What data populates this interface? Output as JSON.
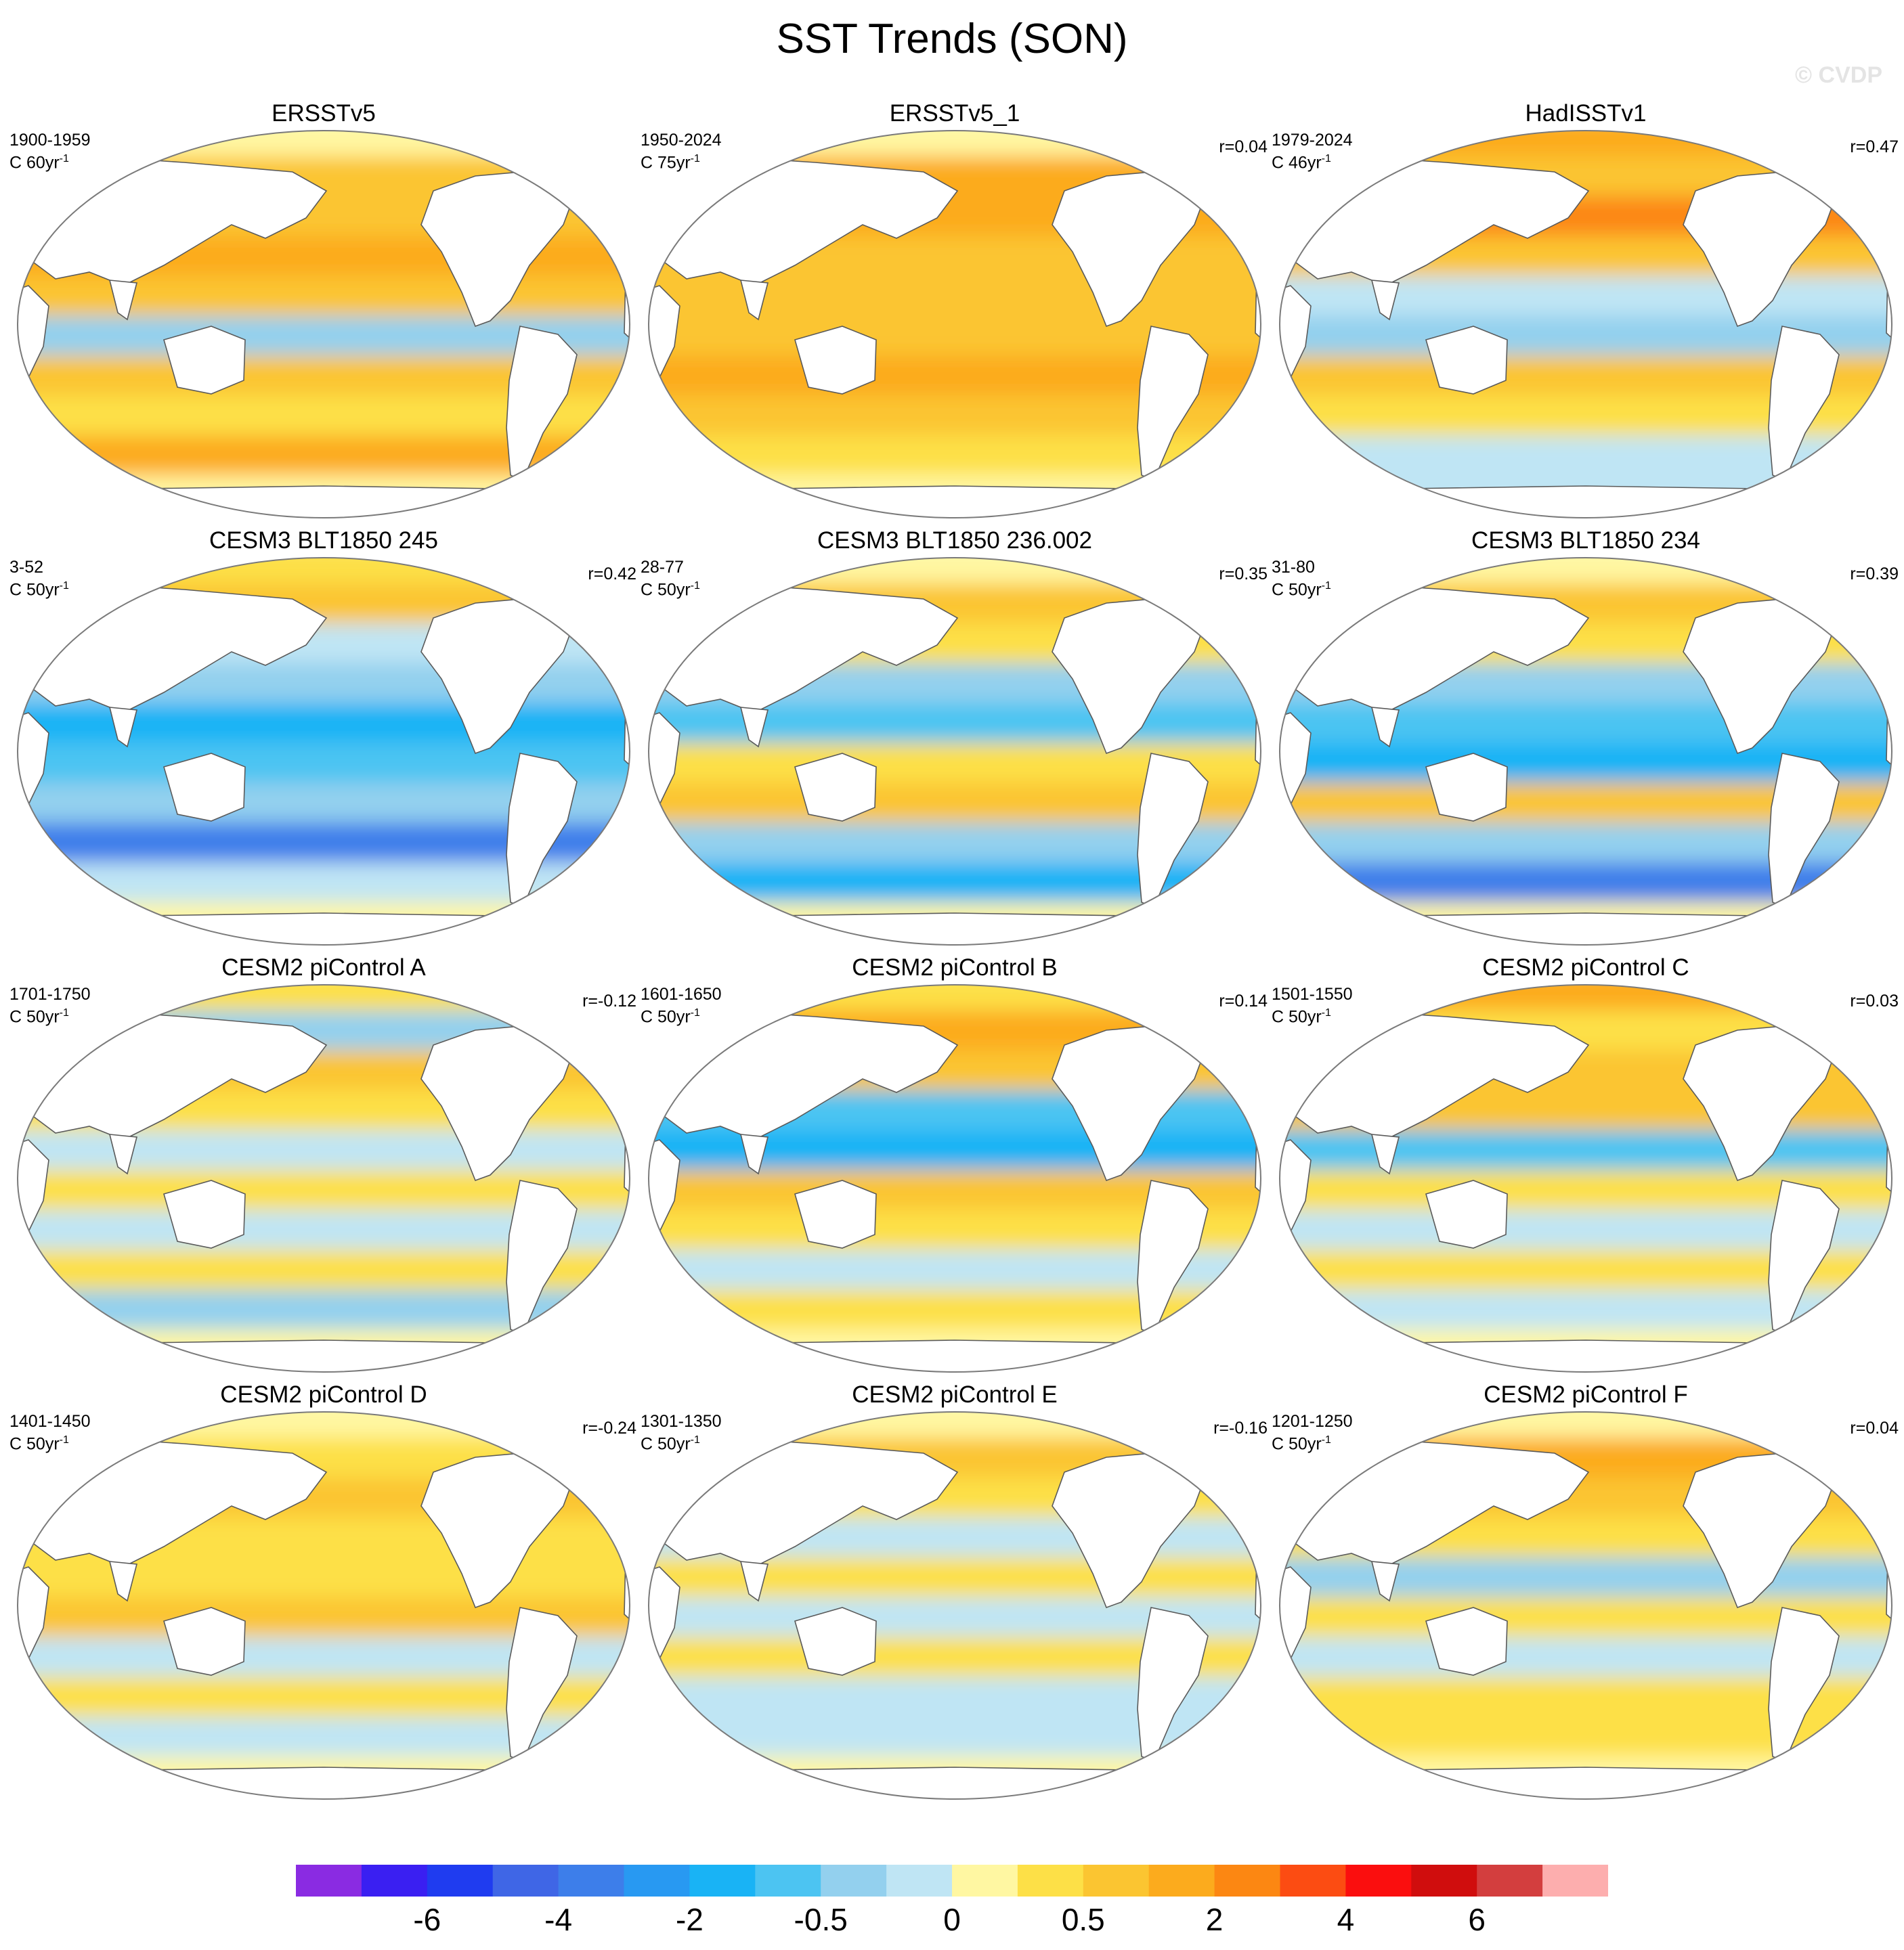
{
  "title": "SST Trends (SON)",
  "watermark": "© CVDP",
  "units": {
    "prefix": "C ",
    "suffix": "yr",
    "exponent": "-1"
  },
  "colors": {
    "land": "#ffffff",
    "coast": "#5a5a5a",
    "outline": "#7a7a7a"
  },
  "panels": [
    {
      "title": "ERSSTv5",
      "period": "1900-1959",
      "span": "60",
      "corr": "",
      "pattern": 0
    },
    {
      "title": "ERSSTv5_1",
      "period": "1950-2024",
      "span": "75",
      "corr": "r=0.04",
      "pattern": 1
    },
    {
      "title": "HadISSTv1",
      "period": "1979-2024",
      "span": "46",
      "corr": "r=0.47",
      "pattern": 2
    },
    {
      "title": "CESM3 BLT1850 245",
      "period": "3-52",
      "span": "50",
      "corr": "r=0.42",
      "pattern": 3
    },
    {
      "title": "CESM3 BLT1850 236.002",
      "period": "28-77",
      "span": "50",
      "corr": "r=0.35",
      "pattern": 4
    },
    {
      "title": "CESM3 BLT1850 234",
      "period": "31-80",
      "span": "50",
      "corr": "r=0.39",
      "pattern": 5
    },
    {
      "title": "CESM2 piControl A",
      "period": "1701-1750",
      "span": "50",
      "corr": "r=-0.12",
      "pattern": 6
    },
    {
      "title": "CESM2 piControl B",
      "period": "1601-1650",
      "span": "50",
      "corr": "r=0.14",
      "pattern": 7
    },
    {
      "title": "CESM2 piControl C",
      "period": "1501-1550",
      "span": "50",
      "corr": "r=0.03",
      "pattern": 8
    },
    {
      "title": "CESM2 piControl D",
      "period": "1401-1450",
      "span": "50",
      "corr": "r=-0.24",
      "pattern": 9
    },
    {
      "title": "CESM2 piControl E",
      "period": "1301-1350",
      "span": "50",
      "corr": "r=-0.16",
      "pattern": 10
    },
    {
      "title": "CESM2 piControl F",
      "period": "1201-1250",
      "span": "50",
      "corr": "r=0.04",
      "pattern": 11
    }
  ],
  "colorbar": {
    "colors": [
      "#8a2be2",
      "#3a1ff2",
      "#1f3cf0",
      "#3f66e6",
      "#3d7eea",
      "#2899f2",
      "#19b3f5",
      "#4cc4f2",
      "#93d0ee",
      "#bfe5f4",
      "#fff7a2",
      "#fde047",
      "#fbc531",
      "#fcab1d",
      "#fc8712",
      "#fc4c12",
      "#fb0e0e",
      "#d00d0d",
      "#d33e3e",
      "#fdaeae"
    ],
    "labels": [
      {
        "text": "-6",
        "boundary": 2
      },
      {
        "text": "-4",
        "boundary": 4
      },
      {
        "text": "-2",
        "boundary": 6
      },
      {
        "text": "-0.5",
        "boundary": 8
      },
      {
        "text": "0",
        "boundary": 10
      },
      {
        "text": "0.5",
        "boundary": 12
      },
      {
        "text": "2",
        "boundary": 14
      },
      {
        "text": "4",
        "boundary": 16
      },
      {
        "text": "6",
        "boundary": 18
      }
    ]
  }
}
